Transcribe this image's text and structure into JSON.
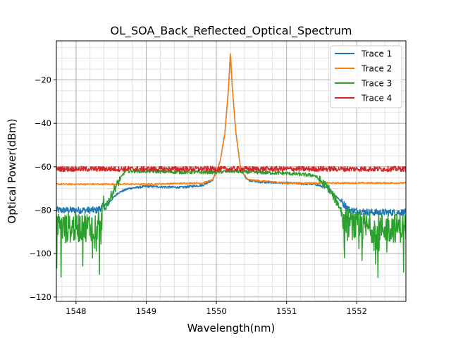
{
  "chart_data": {
    "type": "line",
    "title": "OL_SOA_Back_Reflected_Optical_Spectrum",
    "xlabel": "Wavelength(nm)",
    "ylabel": "Optical Power(dBm)",
    "xlim": [
      1547.72,
      1552.7
    ],
    "ylim": [
      -122,
      -2
    ],
    "xticks": [
      1548,
      1549,
      1550,
      1551,
      1552
    ],
    "yticks": [
      -120,
      -100,
      -80,
      -60,
      -40,
      -20
    ],
    "grid": true,
    "legend_position": "top-right",
    "series": [
      {
        "name": "Trace 1",
        "color": "#1f77b4",
        "x": [
          1547.72,
          1548.0,
          1548.3,
          1548.45,
          1548.6,
          1548.75,
          1549.0,
          1549.5,
          1549.8,
          1549.95,
          1550.05,
          1550.12,
          1550.17,
          1550.2,
          1550.23,
          1550.28,
          1550.35,
          1550.45,
          1550.6,
          1551.0,
          1551.4,
          1551.6,
          1551.75,
          1551.9,
          1552.2,
          1552.7
        ],
        "y": [
          -80,
          -80,
          -80,
          -77,
          -72,
          -70,
          -69,
          -69.5,
          -68.5,
          -66,
          -58,
          -45,
          -25,
          -8,
          -25,
          -45,
          -62,
          -66,
          -67,
          -67.5,
          -68,
          -70,
          -75,
          -80,
          -81,
          -81
        ]
      },
      {
        "name": "Trace 2",
        "color": "#ff7f0e",
        "x": [
          1547.72,
          1548.5,
          1549.0,
          1549.8,
          1549.95,
          1550.05,
          1550.12,
          1550.17,
          1550.2,
          1550.23,
          1550.28,
          1550.35,
          1550.45,
          1551.0,
          1552.0,
          1552.7
        ],
        "y": [
          -68,
          -68,
          -68,
          -67.5,
          -66,
          -58,
          -45,
          -25,
          -7,
          -25,
          -45,
          -62,
          -66,
          -67.5,
          -67.5,
          -67.5
        ]
      },
      {
        "name": "Trace 3",
        "color": "#2ca02c",
        "x": [
          1547.72,
          1548.0,
          1548.3,
          1548.4,
          1548.55,
          1548.7,
          1549.0,
          1549.5,
          1550.0,
          1550.2,
          1550.5,
          1551.0,
          1551.4,
          1551.6,
          1551.75,
          1551.85,
          1552.0,
          1552.4,
          1552.7
        ],
        "y": [
          -88,
          -88,
          -87,
          -80,
          -70,
          -62,
          -62,
          -62.5,
          -62.5,
          -62,
          -62.5,
          -63,
          -64,
          -70,
          -78,
          -85,
          -88,
          -88,
          -88
        ]
      },
      {
        "name": "Trace 4",
        "color": "#d62728",
        "x": [
          1547.72,
          1548.5,
          1549.5,
          1550.2,
          1551.0,
          1552.0,
          1552.7
        ],
        "y": [
          -61,
          -61,
          -61,
          -61,
          -61,
          -61,
          -61
        ]
      }
    ]
  }
}
